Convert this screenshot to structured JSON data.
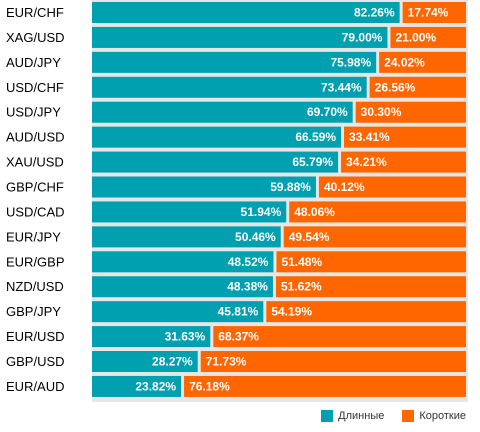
{
  "chart_data": {
    "type": "bar",
    "orientation": "horizontal-stacked-100",
    "title": "",
    "xlabel": "",
    "ylabel": "",
    "categories": [
      "EUR/CHF",
      "XAG/USD",
      "AUD/JPY",
      "USD/CHF",
      "USD/JPY",
      "AUD/USD",
      "XAU/USD",
      "GBP/CHF",
      "USD/CAD",
      "EUR/JPY",
      "EUR/GBP",
      "NZD/USD",
      "GBP/JPY",
      "EUR/USD",
      "GBP/USD",
      "EUR/AUD"
    ],
    "series": [
      {
        "name": "Длинные",
        "color": "#00a0b0",
        "values": [
          82.26,
          79.0,
          75.98,
          73.44,
          69.7,
          66.59,
          65.79,
          59.88,
          51.94,
          50.46,
          48.52,
          48.38,
          45.81,
          31.63,
          28.27,
          23.82
        ],
        "labels": [
          "82.26%",
          "79.00%",
          "75.98%",
          "73.44%",
          "69.70%",
          "66.59%",
          "65.79%",
          "59.88%",
          "51.94%",
          "50.46%",
          "48.52%",
          "48.38%",
          "45.81%",
          "31.63%",
          "28.27%",
          "23.82%"
        ]
      },
      {
        "name": "Короткие",
        "color": "#ff6600",
        "values": [
          17.74,
          21.0,
          24.02,
          26.56,
          30.3,
          33.41,
          34.21,
          40.12,
          48.06,
          49.54,
          51.48,
          51.62,
          54.19,
          68.37,
          71.73,
          76.18
        ],
        "labels": [
          "17.74%",
          "21.00%",
          "24.02%",
          "26.56%",
          "30.30%",
          "33.41%",
          "34.21%",
          "40.12%",
          "48.06%",
          "49.54%",
          "51.48%",
          "51.62%",
          "54.19%",
          "68.37%",
          "71.73%",
          "76.18%"
        ]
      }
    ],
    "xlim": [
      0,
      100
    ],
    "grid": false,
    "legend_position": "bottom-right"
  }
}
